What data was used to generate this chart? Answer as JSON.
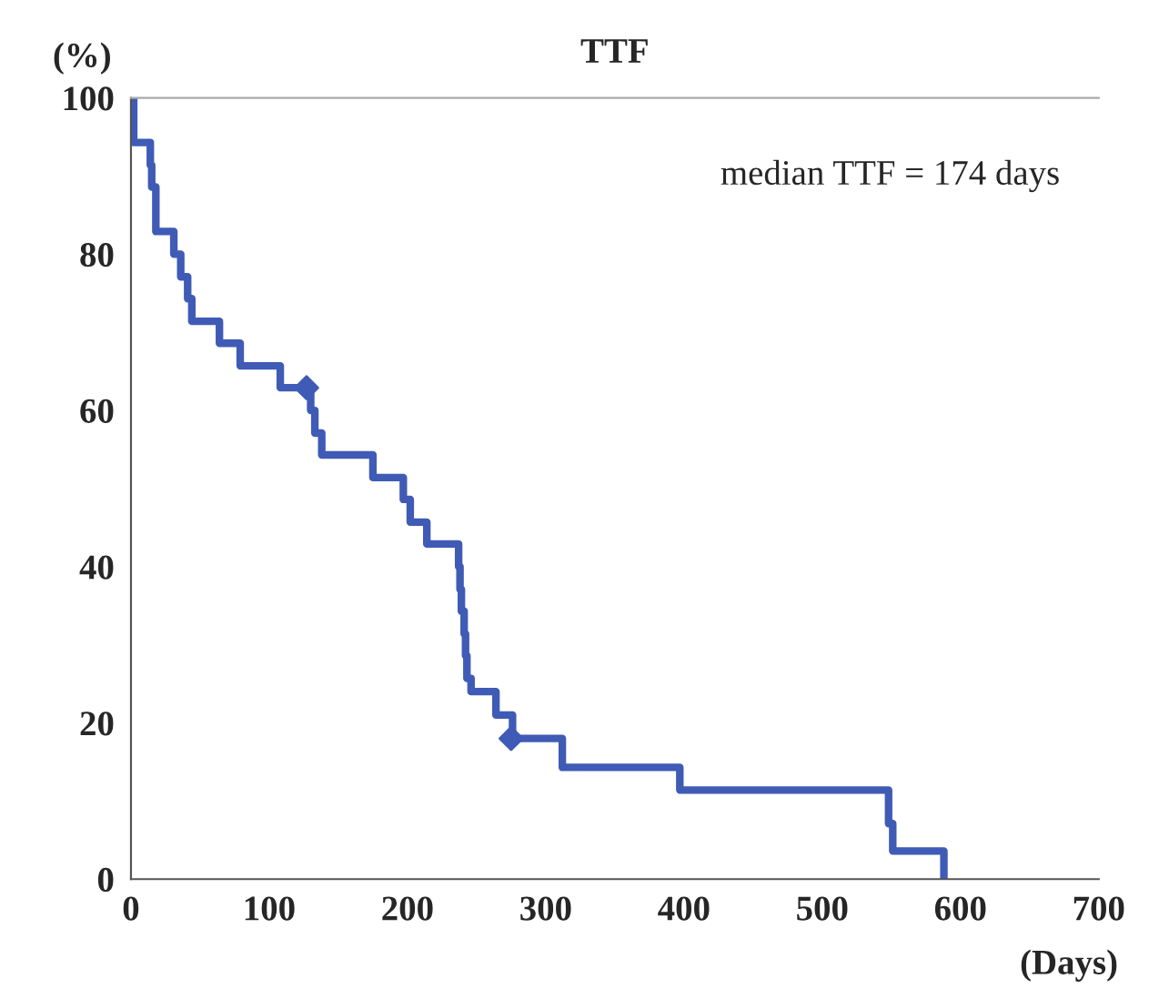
{
  "chart_data": {
    "type": "step",
    "title": "TTF",
    "xlabel": "(Days)",
    "ylabel": "(%)",
    "xlim": [
      0,
      700
    ],
    "ylim": [
      0,
      100
    ],
    "xticks": [
      0,
      100,
      200,
      300,
      400,
      500,
      600,
      700
    ],
    "yticks": [
      0,
      20,
      40,
      60,
      80,
      100
    ],
    "grid": false,
    "legend": false,
    "line_style": "solid",
    "annotations": [
      "median TTF = 174 days"
    ],
    "series": [
      {
        "color": "#3f5bb5",
        "x": [
          0,
          2,
          14,
          15,
          18,
          31,
          36,
          41,
          44,
          64,
          79,
          108,
          130,
          133,
          138,
          175,
          197,
          202,
          214,
          237,
          238,
          239,
          241,
          242,
          243,
          246,
          264,
          276,
          312,
          397,
          548,
          551,
          588
        ],
        "values": [
          100,
          94.3,
          91.4,
          88.6,
          82.9,
          80,
          77.1,
          74.3,
          71.4,
          68.6,
          65.7,
          62.9,
          60,
          57.1,
          54.3,
          51.4,
          48.6,
          45.7,
          42.9,
          40,
          37.1,
          34.3,
          31.4,
          28.6,
          25.7,
          24,
          21,
          18,
          14.3,
          11.4,
          7.1,
          3.6,
          0
        ]
      },
      {
        "type": "scatter",
        "color": "#3f5bb5",
        "marker": "diamond",
        "x": [
          127,
          275
        ],
        "values": [
          62.9,
          18
        ]
      }
    ]
  }
}
